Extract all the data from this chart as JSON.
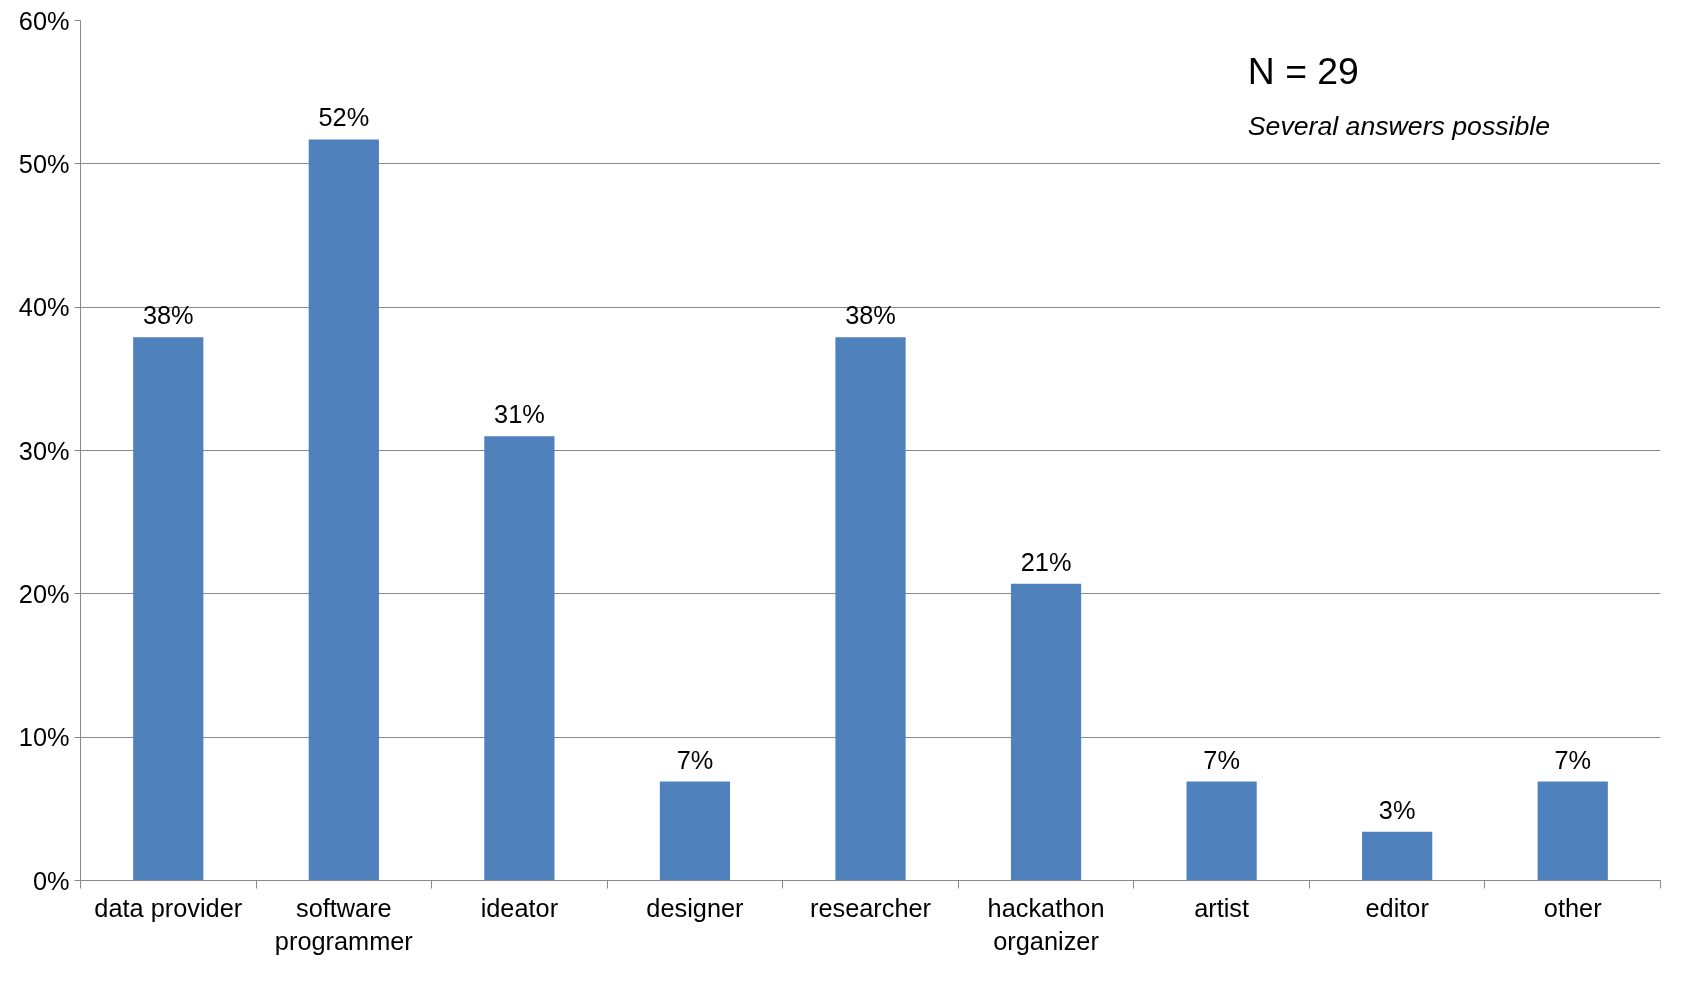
{
  "chart_data": {
    "type": "bar",
    "categories": [
      "data provider",
      "software programmer",
      "ideator",
      "designer",
      "researcher",
      "hackathon organizer",
      "artist",
      "editor",
      "other"
    ],
    "values": [
      37.9,
      51.7,
      31.0,
      6.9,
      37.9,
      20.7,
      6.9,
      3.4,
      6.9
    ],
    "value_labels": [
      "38%",
      "52%",
      "31%",
      "7%",
      "38%",
      "21%",
      "7%",
      "3%",
      "7%"
    ],
    "color": "#4f81bd",
    "ylim": [
      0,
      60
    ],
    "yticks": [
      {
        "value": 0,
        "label": "0%"
      },
      {
        "value": 10,
        "label": "10%"
      },
      {
        "value": 20,
        "label": "20%"
      },
      {
        "value": 30,
        "label": "30%"
      },
      {
        "value": 40,
        "label": "40%"
      },
      {
        "value": 50,
        "label": "50%"
      },
      {
        "value": 60,
        "label": "60%"
      }
    ],
    "grid": "y",
    "annotations": [
      "N = 29",
      "Several answers possible"
    ]
  }
}
